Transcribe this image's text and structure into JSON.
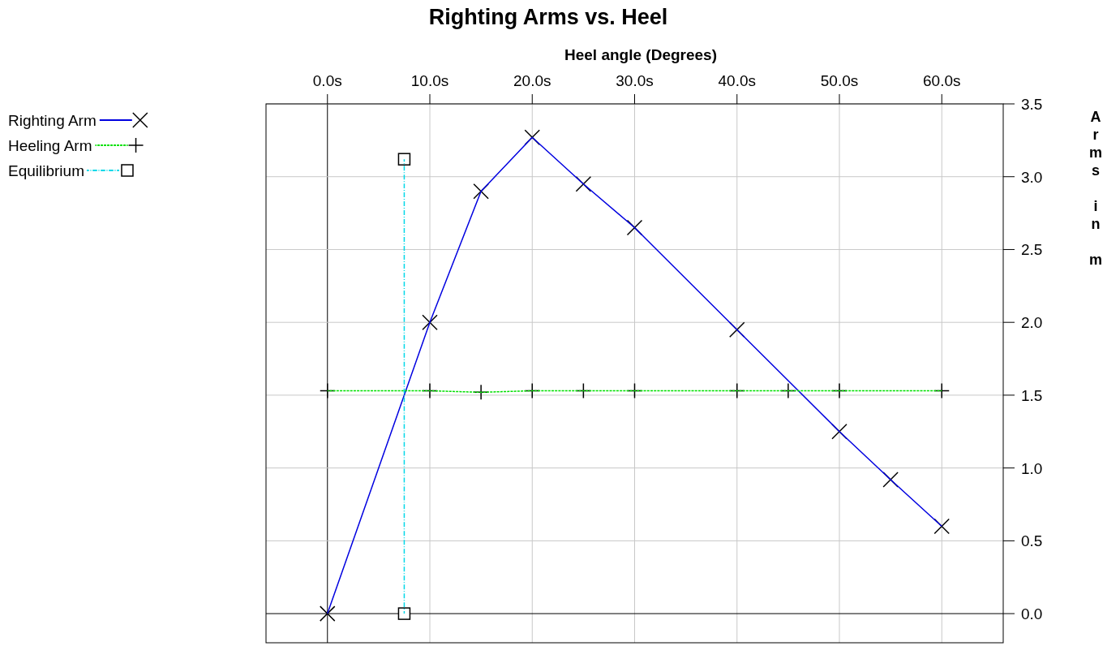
{
  "chart_data": {
    "type": "line",
    "title": "Righting Arms vs. Heel",
    "xlabel": "Heel angle (Degrees)",
    "ylabel": "Arms in m",
    "xlim": [
      -6,
      66
    ],
    "ylim": [
      -0.2,
      3.5
    ],
    "xticks": [
      {
        "value": 0,
        "label": "0.0s"
      },
      {
        "value": 10,
        "label": "10.0s"
      },
      {
        "value": 20,
        "label": "20.0s"
      },
      {
        "value": 30,
        "label": "30.0s"
      },
      {
        "value": 40,
        "label": "40.0s"
      },
      {
        "value": 50,
        "label": "50.0s"
      },
      {
        "value": 60,
        "label": "60.0s"
      }
    ],
    "yticks": [
      {
        "value": 0,
        "label": "0.0"
      },
      {
        "value": 0.5,
        "label": "0.5"
      },
      {
        "value": 1,
        "label": "1.0"
      },
      {
        "value": 1.5,
        "label": "1.5"
      },
      {
        "value": 2,
        "label": "2.0"
      },
      {
        "value": 2.5,
        "label": "2.5"
      },
      {
        "value": 3,
        "label": "3.0"
      },
      {
        "value": 3.5,
        "label": "3.5"
      }
    ],
    "grid": true,
    "legend": "left",
    "series": [
      {
        "name": "Righting Arm",
        "color": "#0000e0",
        "marker": "cross",
        "line_style": "solid",
        "x": [
          0,
          10,
          15,
          20,
          25,
          30,
          40,
          50,
          55,
          60
        ],
        "values": [
          0,
          2.0,
          2.9,
          3.27,
          2.95,
          2.65,
          1.95,
          1.25,
          0.92,
          0.6
        ]
      },
      {
        "name": "Heeling Arm",
        "color": "#00e000",
        "marker": "plus",
        "line_style": "dashed",
        "x": [
          0,
          10,
          15,
          20,
          25,
          30,
          40,
          45,
          50,
          60
        ],
        "values": [
          1.53,
          1.53,
          1.52,
          1.53,
          1.53,
          1.53,
          1.53,
          1.53,
          1.53,
          1.53
        ]
      },
      {
        "name": "Equilibrium",
        "color": "#00d8e8",
        "marker": "square",
        "line_style": "dotted",
        "x": [
          7.5,
          7.5
        ],
        "values": [
          0,
          3.12
        ]
      }
    ]
  }
}
